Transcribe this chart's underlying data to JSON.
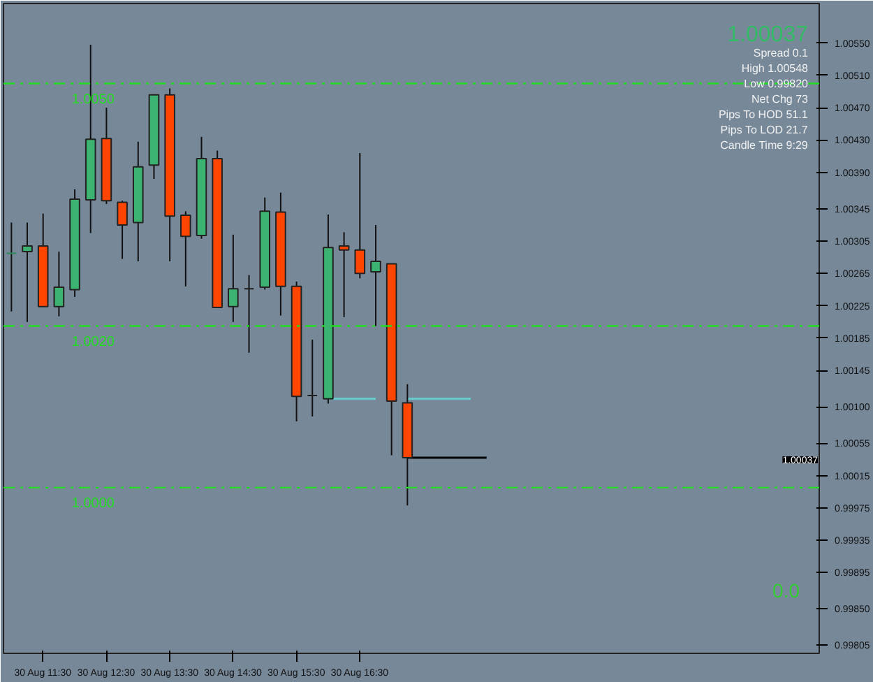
{
  "chart_data": {
    "type": "candlestick",
    "categories": [
      null,
      null,
      "30 Aug 11:30",
      null,
      null,
      null,
      "30 Aug 12:30",
      null,
      null,
      null,
      "30 Aug 13:30",
      null,
      null,
      null,
      "30 Aug 14:30",
      null,
      null,
      null,
      "30 Aug 15:30",
      null,
      null,
      null,
      "30 Aug 16:30",
      null,
      null,
      null,
      null,
      null,
      null,
      null,
      null,
      null,
      null,
      null,
      null,
      null,
      null,
      null,
      null,
      null,
      null,
      null,
      null,
      null,
      null,
      null,
      null,
      null,
      null,
      null,
      null
    ],
    "ohlc": [
      [
        1.0029,
        1.00328,
        1.00218,
        1.0029
      ],
      [
        1.00292,
        1.00328,
        1.00205,
        1.00299
      ],
      [
        1.00299,
        1.00339,
        1.00224,
        1.00224
      ],
      [
        1.00224,
        1.00292,
        1.00212,
        1.00248
      ],
      [
        1.00245,
        1.00369,
        1.00236,
        1.00357
      ],
      [
        1.00356,
        1.00548,
        1.00315,
        1.00431
      ],
      [
        1.00432,
        1.0047,
        1.00351,
        1.00355
      ],
      [
        1.00353,
        1.00355,
        1.00283,
        1.00325
      ],
      [
        1.00328,
        1.00428,
        1.0028,
        1.00397
      ],
      [
        1.00399,
        1.00486,
        1.00382,
        1.00486
      ],
      [
        1.00486,
        1.00494,
        1.0028,
        1.00336
      ],
      [
        1.00337,
        1.00342,
        1.00249,
        1.00311
      ],
      [
        1.00312,
        1.00434,
        1.00308,
        1.00407
      ],
      [
        1.00407,
        1.00417,
        1.00223,
        1.00223
      ],
      [
        1.00224,
        1.00313,
        1.00205,
        1.00246
      ],
      [
        1.00246,
        1.00263,
        1.00167,
        1.00246
      ],
      [
        1.00248,
        1.00359,
        1.00245,
        1.00342
      ],
      [
        1.00341,
        1.00365,
        1.00213,
        1.00249
      ],
      [
        1.00249,
        1.00255,
        1.00082,
        1.00113
      ],
      [
        1.00114,
        1.00183,
        1.00088,
        1.00114
      ],
      [
        1.0011,
        1.00338,
        1.00104,
        1.00297
      ],
      [
        1.00299,
        1.00316,
        1.00211,
        1.00294
      ],
      [
        1.00294,
        1.00414,
        1.00259,
        1.00265
      ],
      [
        1.00267,
        1.00325,
        1.002,
        1.0028
      ],
      [
        1.00277,
        1.00277,
        1.0004,
        1.00107
      ],
      [
        1.00105,
        1.00128,
        0.99978,
        1.00037
      ],
      null,
      null,
      null,
      null,
      null,
      null,
      null,
      null,
      null,
      null,
      null,
      null,
      null,
      null,
      null,
      null,
      null,
      null,
      null,
      null,
      null,
      null,
      null,
      null,
      null
    ],
    "colors": [
      "#2e8b57",
      "#3cb371",
      "#ff4500",
      "#3cb371",
      "#3cb371",
      "#3cb371",
      "#ff4500",
      "#ff4500",
      "#3cb371",
      "#3cb371",
      "#ff4500",
      "#ff4500",
      "#3cb371",
      "#ff4500",
      "#3cb371",
      "#1f1f1f",
      "#3cb371",
      "#ff4500",
      "#ff4500",
      "#1f1f1f",
      "#3cb371",
      "#ff4500",
      "#ff4500",
      "#3cb371",
      "#ff4500",
      "#ff4500",
      null,
      null,
      null,
      null,
      null,
      null,
      null,
      null,
      null,
      null,
      null,
      null,
      null,
      null,
      null,
      null,
      null,
      null,
      null,
      null,
      null,
      null,
      null,
      null,
      null
    ],
    "series": [
      {
        "type": "line",
        "color": "#66cccc",
        "values": [
          null,
          null,
          null,
          null,
          null,
          null,
          null,
          null,
          null,
          null,
          null,
          null,
          null,
          null,
          null,
          null,
          null,
          null,
          null,
          null,
          1.0011,
          1.0011,
          1.0011,
          1.0011,
          null,
          1.0011,
          1.0011,
          1.0011,
          1.0011,
          1.0011,
          null,
          null,
          null,
          null,
          null,
          null,
          null,
          null,
          null,
          null,
          null,
          null,
          null,
          null,
          null,
          null,
          null,
          null,
          null,
          null,
          null
        ]
      },
      {
        "type": "line",
        "color": "#000000",
        "values": [
          null,
          null,
          null,
          null,
          null,
          null,
          null,
          null,
          null,
          null,
          null,
          null,
          null,
          null,
          null,
          null,
          null,
          null,
          null,
          null,
          null,
          null,
          null,
          null,
          null,
          1.00037,
          1.00037,
          1.00037,
          1.00037,
          1.00037,
          1.00037,
          null,
          null,
          null,
          null,
          null,
          null,
          null,
          null,
          null,
          null,
          null,
          null,
          null,
          null,
          null,
          null,
          null,
          null,
          null,
          null
        ]
      }
    ],
    "ylim": [
      0.99795,
      1.00599
    ],
    "yticks": [
      {
        "value": 1.0055,
        "label": "1.00550"
      },
      {
        "value": 1.0051,
        "label": "1.00510"
      },
      {
        "value": 1.0047,
        "label": "1.00470"
      },
      {
        "value": 1.0043,
        "label": "1.00430"
      },
      {
        "value": 1.0039,
        "label": "1.00390"
      },
      {
        "value": 1.00345,
        "label": "1.00345"
      },
      {
        "value": 1.00305,
        "label": "1.00305"
      },
      {
        "value": 1.00265,
        "label": "1.00265"
      },
      {
        "value": 1.00225,
        "label": "1.00225"
      },
      {
        "value": 1.00185,
        "label": "1.00185"
      },
      {
        "value": 1.00145,
        "label": "1.00145"
      },
      {
        "value": 1.001,
        "label": "1.00100"
      },
      {
        "value": 1.00055,
        "label": "1.00055"
      },
      {
        "value": 1.00015,
        "label": "1.00015"
      },
      {
        "value": 0.99975,
        "label": "0.99975"
      },
      {
        "value": 0.99935,
        "label": "0.99935"
      },
      {
        "value": 0.99895,
        "label": "0.99895"
      },
      {
        "value": 0.9985,
        "label": "0.99850"
      },
      {
        "value": 0.99805,
        "label": "0.99805"
      }
    ],
    "ref_lines": [
      {
        "axis": "y",
        "value": 1.005,
        "label": "1.0050",
        "color": "#22dd22",
        "line_style": "dashed"
      },
      {
        "axis": "y",
        "value": 1.002,
        "label": "1.0020",
        "color": "#22dd22",
        "line_style": "dashed"
      },
      {
        "axis": "y",
        "value": 1.0,
        "label": "1.0000",
        "color": "#22dd22",
        "line_style": "dashed"
      }
    ],
    "annotations": [
      "1.00037",
      "1.00037",
      "Spread 0.1",
      "High 1.00548",
      "Low 0.99820",
      "Net Chg 73",
      "Pips To HOD 51.1",
      "Pips To LOD 21.7",
      "Candle Time 9:29",
      "0.0"
    ],
    "grid": false
  }
}
